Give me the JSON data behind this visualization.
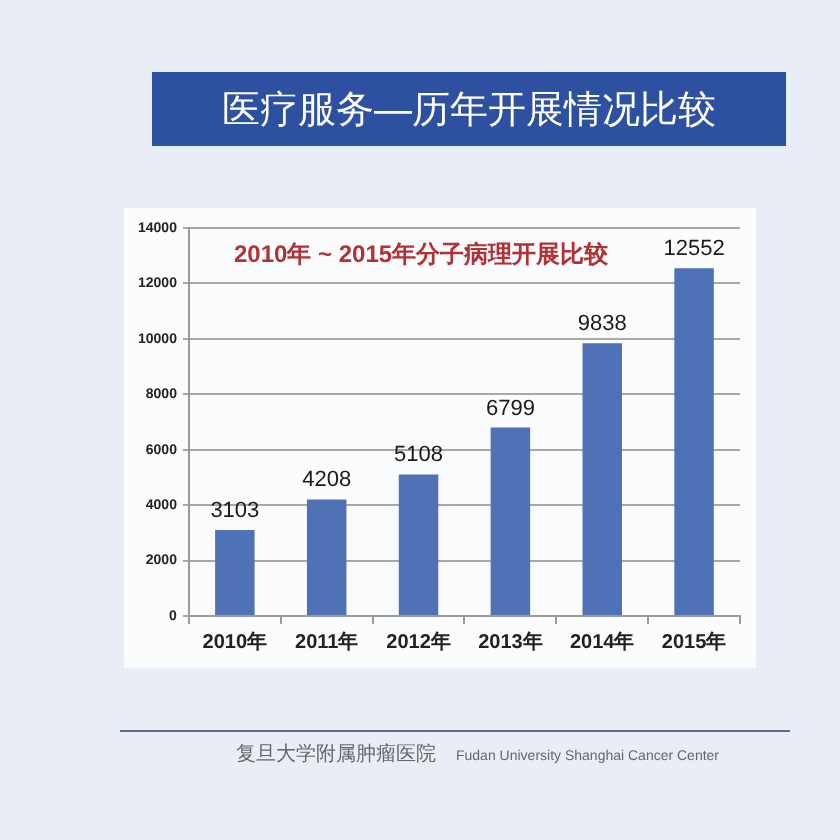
{
  "chart_data": {
    "type": "bar",
    "title": "医疗服务—历年开展情况比较",
    "subtitle": "2010年 ~ 2015年分子病理开展比较",
    "categories": [
      "2010年",
      "2011年",
      "2012年",
      "2013年",
      "2014年",
      "2015年"
    ],
    "values": [
      3103,
      4208,
      5108,
      6799,
      9838,
      12552
    ],
    "color": "#4f72b6",
    "ylim": [
      0,
      14000
    ],
    "yticks": [
      0,
      2000,
      4000,
      6000,
      8000,
      10000,
      12000,
      14000
    ],
    "grid": "y",
    "legend": false,
    "data_labels": true,
    "annotations": [
      "复旦大学附属肿瘤医院",
      "Fudan University Shanghai Cancer Center"
    ]
  }
}
